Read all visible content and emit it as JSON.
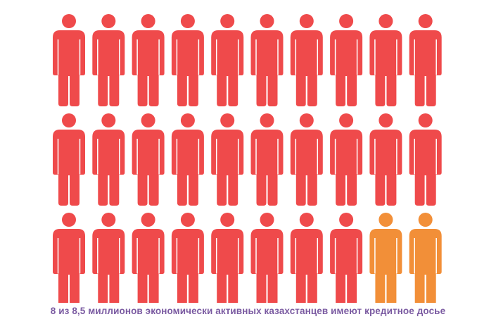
{
  "chart_data": {
    "type": "pictogram",
    "rows": 3,
    "columns": 10,
    "total_icons": 30,
    "highlighted_icons": 28,
    "icon": "person-icon",
    "colors": {
      "highlighted": "#ef4a4b",
      "other": "#f28f38",
      "caption": "#7a5aa1"
    },
    "caption": "8 из 8,5 миллионов экономически активных казахстанцев имеют кредитное досье"
  }
}
